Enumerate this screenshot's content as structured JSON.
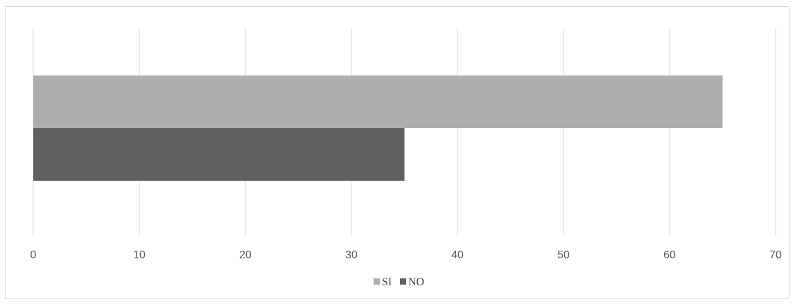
{
  "chart_data": {
    "type": "bar",
    "orientation": "horizontal",
    "title": "",
    "xlabel": "",
    "ylabel": "",
    "xlim": [
      0,
      70
    ],
    "xticks": [
      0,
      10,
      20,
      30,
      40,
      50,
      60,
      70
    ],
    "grid": "vertical",
    "legend_position": "bottom",
    "series": [
      {
        "name": "SI",
        "value": 65,
        "color": "#aeaeae"
      },
      {
        "name": "NO",
        "value": 35,
        "color": "#606060"
      }
    ]
  }
}
